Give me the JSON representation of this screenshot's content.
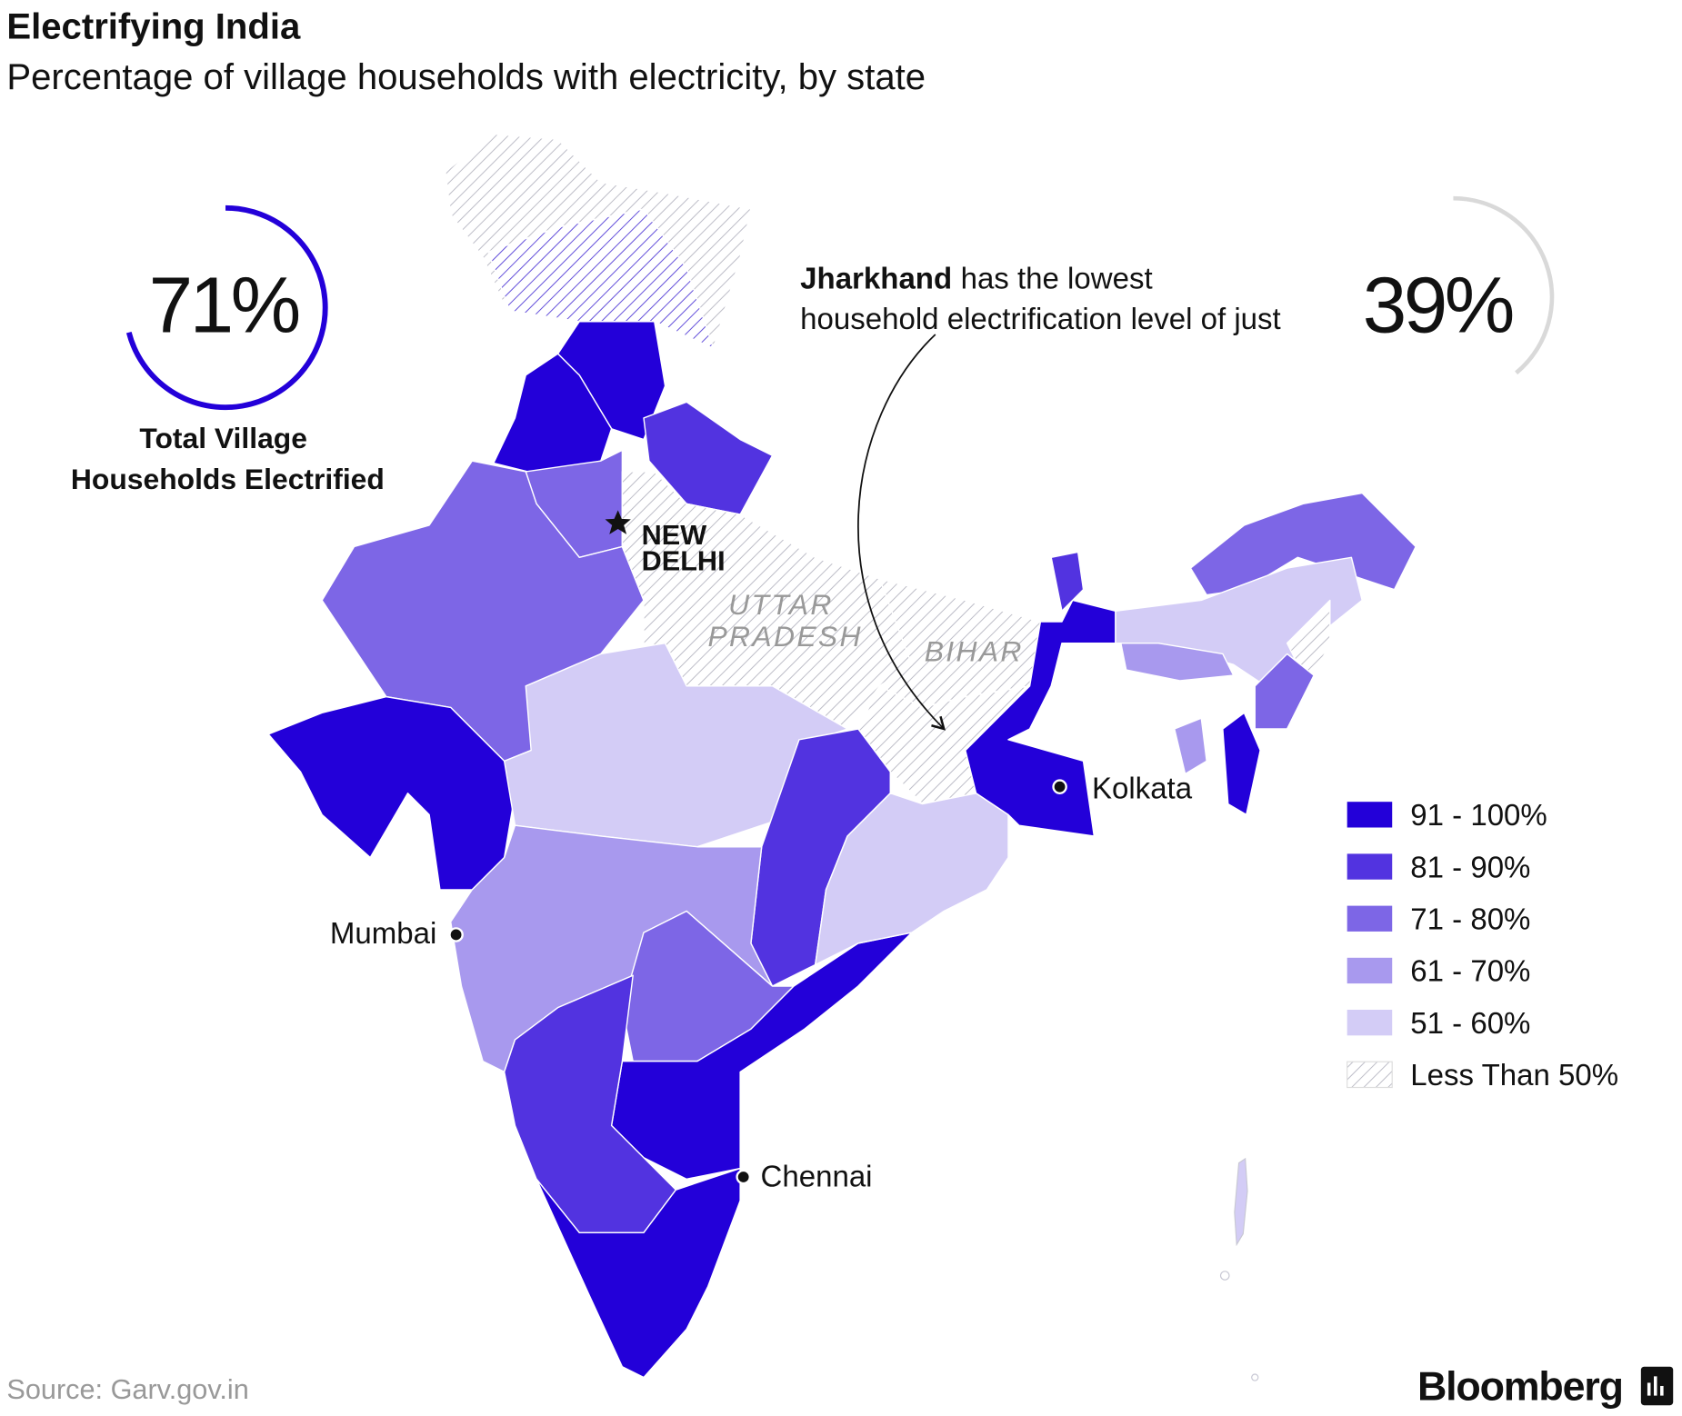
{
  "header": {
    "title": "Electrifying India",
    "subtitle": "Percentage of village households with electricity, by state"
  },
  "gauges": [
    {
      "value": 71,
      "label": "71%",
      "color": "#2300d9"
    },
    {
      "value": 39,
      "label": "39%",
      "color": "#d9d9d9"
    }
  ],
  "total_caption": [
    "Total Village",
    "Households Electrified"
  ],
  "annotation": {
    "highlight": "Jharkhand",
    "line1": "has the lowest",
    "line2": "household electrification level of just"
  },
  "cities": [
    "NEW",
    "DELHI",
    "Kolkata",
    "Mumbai",
    "Chennai"
  ],
  "states": [
    "UTTAR",
    "PRADESH",
    "BIHAR"
  ],
  "legend": [
    {
      "label": "91 - 100%",
      "color": "#2300d9"
    },
    {
      "label": "81 - 90%",
      "color": "#5233e0"
    },
    {
      "label": "71 - 80%",
      "color": "#7d66e6"
    },
    {
      "label": "61 - 70%",
      "color": "#a899ee"
    },
    {
      "label": "51 - 60%",
      "color": "#d3ccf6"
    },
    {
      "label": "Less Than 50%",
      "pattern": "hatch"
    }
  ],
  "footer": {
    "source": "Source: Garv.gov.in",
    "brand": "Bloomberg"
  }
}
